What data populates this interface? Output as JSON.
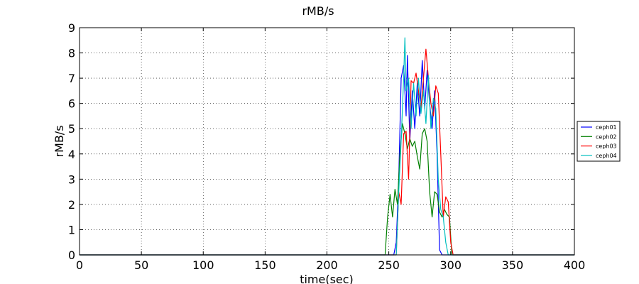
{
  "chart_data": {
    "type": "line",
    "title": "rMB/s",
    "xlabel": "time(sec)",
    "ylabel": "rMB/s",
    "xlim": [
      0,
      400
    ],
    "ylim": [
      0,
      9
    ],
    "xticks": [
      0,
      50,
      100,
      150,
      200,
      250,
      300,
      350,
      400
    ],
    "yticks": [
      0,
      1,
      2,
      3,
      4,
      5,
      6,
      7,
      8,
      9
    ],
    "grid": true,
    "legend_placement": "right",
    "series": [
      {
        "name": "ceph01",
        "color": "#0000ff",
        "x": [
          0,
          254,
          256,
          258,
          260,
          262,
          264,
          265,
          267,
          269,
          271,
          273,
          275,
          277,
          279,
          281,
          283,
          285,
          287,
          289,
          291,
          293,
          400
        ],
        "y": [
          0,
          0,
          0.5,
          3.0,
          7.0,
          7.5,
          5.5,
          7.9,
          4.5,
          6.5,
          5.0,
          6.8,
          5.5,
          7.7,
          5.8,
          7.3,
          6.0,
          5.0,
          6.5,
          4.0,
          0.2,
          0,
          0
        ]
      },
      {
        "name": "ceph02",
        "color": "#008000",
        "x": [
          0,
          247,
          249,
          251,
          253,
          255,
          257,
          259,
          261,
          263,
          265,
          267,
          269,
          271,
          273,
          275,
          277,
          279,
          281,
          283,
          285,
          287,
          289,
          291,
          293,
          295,
          297,
          299,
          301,
          400
        ],
        "y": [
          0,
          0,
          1.5,
          2.4,
          1.5,
          2.6,
          2.0,
          4.0,
          5.2,
          4.8,
          4.2,
          4.6,
          4.3,
          4.5,
          3.9,
          3.4,
          4.8,
          5.0,
          4.5,
          2.5,
          1.5,
          2.5,
          2.4,
          1.7,
          1.5,
          1.8,
          1.6,
          1.5,
          0,
          0
        ]
      },
      {
        "name": "ceph03",
        "color": "#ff0000",
        "x": [
          0,
          256,
          258,
          260,
          262,
          264,
          266,
          268,
          270,
          272,
          274,
          276,
          278,
          280,
          282,
          284,
          286,
          288,
          290,
          292,
          294,
          296,
          298,
          300,
          302,
          400
        ],
        "y": [
          0,
          0,
          2.5,
          2.0,
          4.8,
          4.9,
          3.0,
          6.9,
          6.8,
          7.2,
          6.5,
          5.8,
          7.0,
          8.15,
          7.0,
          6.0,
          5.5,
          6.7,
          6.4,
          4.0,
          1.5,
          2.3,
          2.1,
          0.5,
          0,
          0
        ]
      },
      {
        "name": "ceph04",
        "color": "#00bfbf",
        "x": [
          0,
          256,
          258,
          260,
          262,
          263,
          264,
          266,
          268,
          270,
          272,
          274,
          276,
          278,
          280,
          282,
          284,
          286,
          288,
          290,
          292,
          294,
          296,
          298,
          400
        ],
        "y": [
          0,
          0,
          2.5,
          4.5,
          7.0,
          8.6,
          6.5,
          7.0,
          5.0,
          6.8,
          5.5,
          7.0,
          5.6,
          6.5,
          5.2,
          7.1,
          5.0,
          6.2,
          5.8,
          3.0,
          1.8,
          1.5,
          0.5,
          0,
          0
        ]
      }
    ]
  }
}
